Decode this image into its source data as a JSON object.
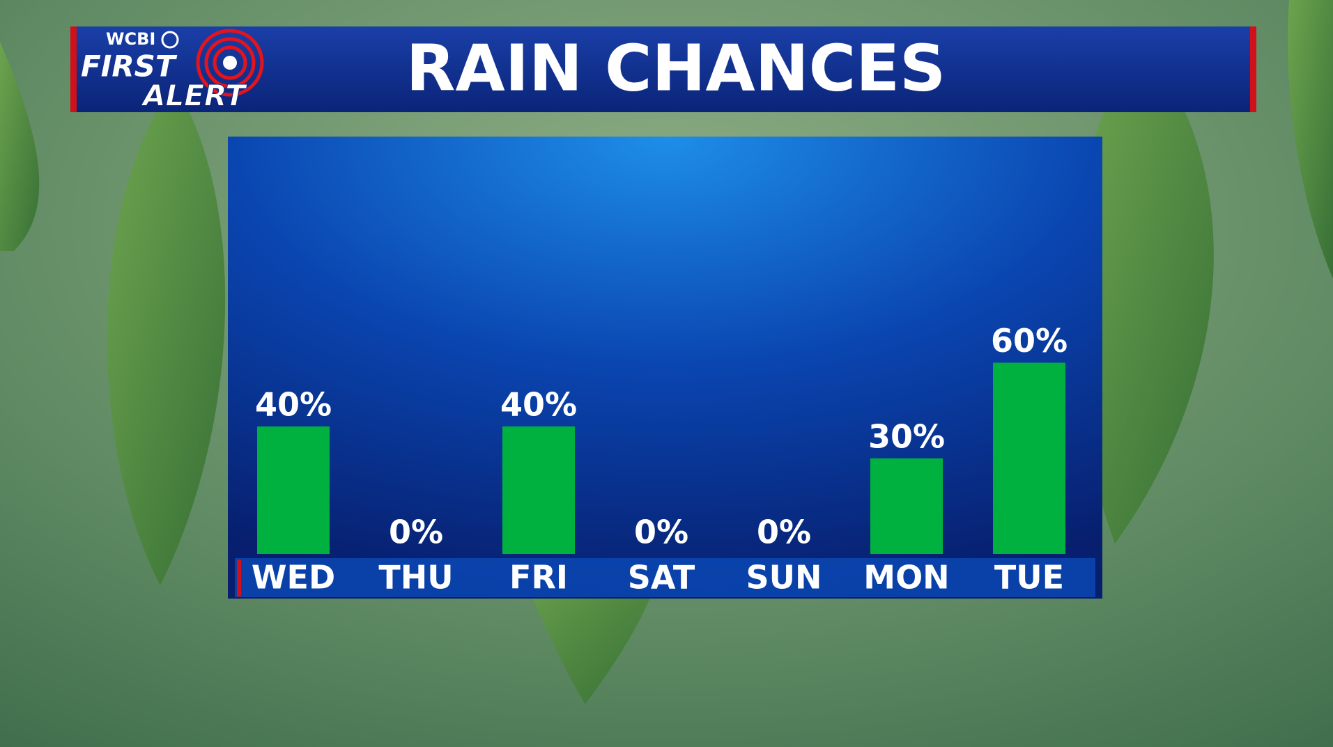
{
  "logo": {
    "station": "WCBI",
    "line1": "FIRST",
    "line2": "ALERT"
  },
  "chart_data": {
    "type": "bar",
    "title": "RAIN CHANCES",
    "categories": [
      "WED",
      "THU",
      "FRI",
      "SAT",
      "SUN",
      "MON",
      "TUE"
    ],
    "values": [
      40,
      0,
      40,
      0,
      0,
      30,
      60
    ],
    "value_labels": [
      "40%",
      "0%",
      "40%",
      "0%",
      "0%",
      "30%",
      "60%"
    ],
    "color": "#00b140"
  }
}
